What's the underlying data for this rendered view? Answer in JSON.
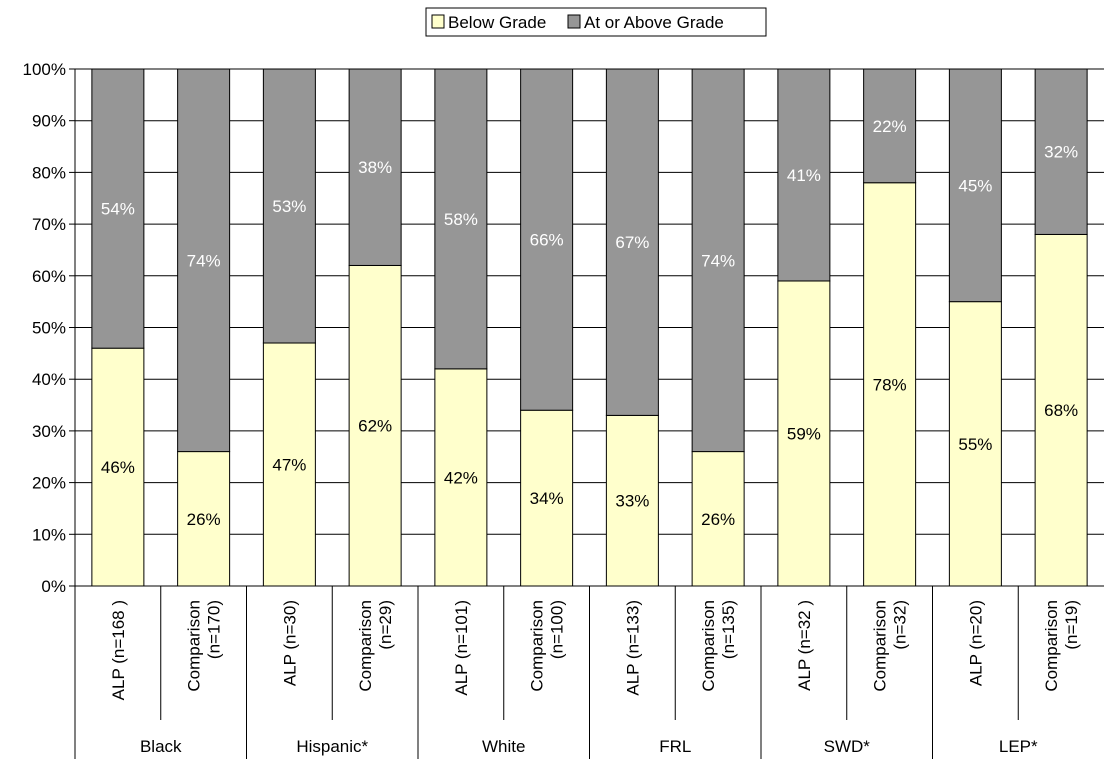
{
  "chart_data": {
    "type": "bar",
    "stacked": true,
    "percent": true,
    "ylim": [
      0,
      100
    ],
    "yticks": [
      "0%",
      "10%",
      "20%",
      "30%",
      "40%",
      "50%",
      "60%",
      "70%",
      "80%",
      "90%",
      "100%"
    ],
    "legend_position": "top-center",
    "grid": true,
    "series": [
      {
        "name": "Below Grade",
        "color": "#FFFFCC",
        "values": [
          46,
          26,
          47,
          62,
          42,
          34,
          33,
          26,
          59,
          78,
          55,
          68
        ],
        "labels": [
          "46%",
          "26%",
          "47%",
          "62%",
          "42%",
          "34%",
          "33%",
          "26%",
          "59%",
          "78%",
          "55%",
          "68%"
        ]
      },
      {
        "name": "At or Above Grade",
        "color": "#969696",
        "values": [
          54,
          74,
          53,
          38,
          58,
          66,
          67,
          74,
          41,
          22,
          45,
          32
        ],
        "labels": [
          "54%",
          "74%",
          "53%",
          "38%",
          "58%",
          "66%",
          "67%",
          "74%",
          "41%",
          "22%",
          "45%",
          "32%"
        ]
      }
    ],
    "categories": [
      [
        "ALP (n=168 )"
      ],
      [
        "Comparison",
        "(n=170)"
      ],
      [
        "ALP (n=30)"
      ],
      [
        "Comparison",
        "(n=29)"
      ],
      [
        "ALP (n=101)"
      ],
      [
        "Comparison",
        "(n=100)"
      ],
      [
        "ALP (n=133)"
      ],
      [
        "Comparison",
        "(n=135)"
      ],
      [
        "ALP (n=32 )"
      ],
      [
        "Comparison",
        "(n=32)"
      ],
      [
        "ALP (n=20)"
      ],
      [
        "Comparison",
        "(n=19)"
      ]
    ],
    "groups": [
      "Black",
      "Hispanic*",
      "White",
      "FRL",
      "SWD*",
      "LEP*"
    ]
  }
}
